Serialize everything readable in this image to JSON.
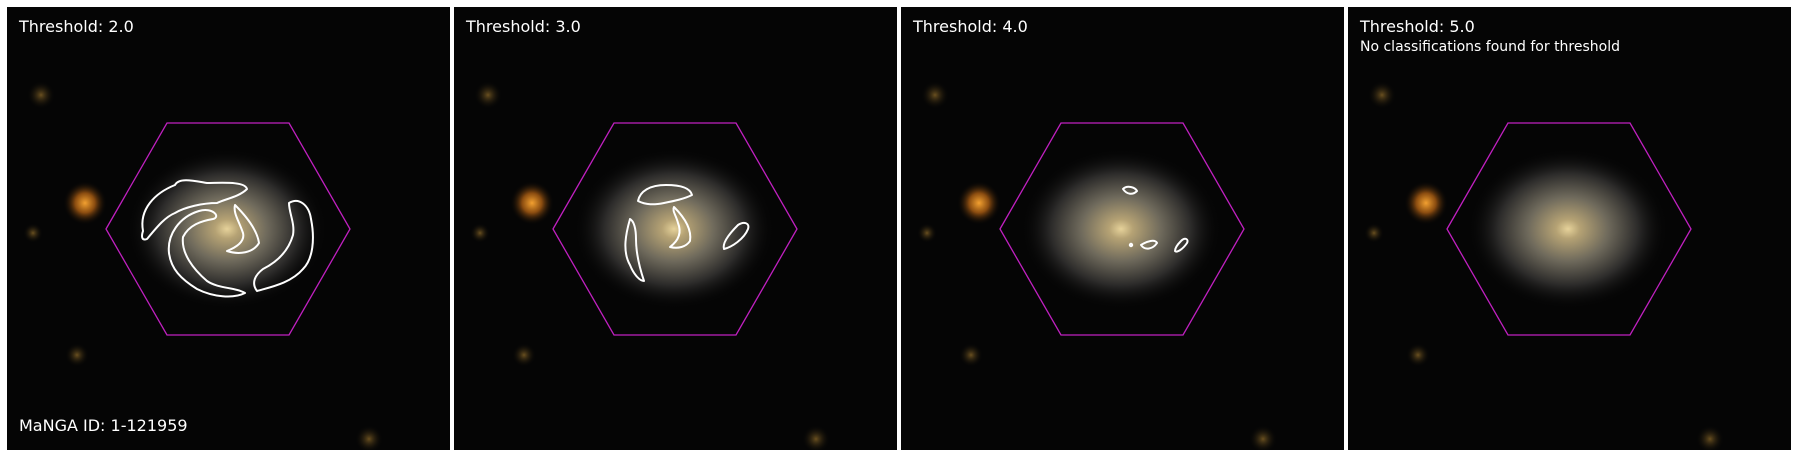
{
  "manga_id_label": "MaNGA ID: 1-121959",
  "panels": [
    {
      "title": "Threshold: 2.0",
      "note": ""
    },
    {
      "title": "Threshold: 3.0",
      "note": ""
    },
    {
      "title": "Threshold: 4.0",
      "note": ""
    },
    {
      "title": "Threshold: 5.0",
      "note": "No classifications found for threshold"
    }
  ],
  "colors": {
    "background": "#050505",
    "hexagon_outline": "#c020c0",
    "contour": "#ffffff",
    "galaxy_core": "#d8c490",
    "foreground_star": "#e08a20"
  }
}
